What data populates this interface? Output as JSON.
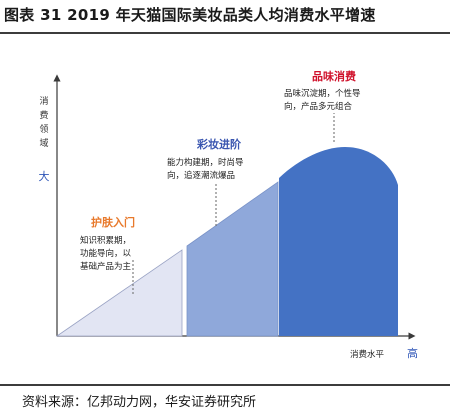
{
  "title": "图表 31 2019 年天猫国际美妆品类人均消费水平增速",
  "y_axis": {
    "label_chars": [
      "消",
      "费",
      "领",
      "域"
    ],
    "high_label": "大"
  },
  "x_axis": {
    "label": "消费水平",
    "high_label": "高"
  },
  "stages": [
    {
      "name": "护肤入门",
      "desc_lines": [
        "知识积累期，",
        "功能导向，以",
        "基础产品为主"
      ],
      "color": "#e2e5f3",
      "title_color": "#e8792b"
    },
    {
      "name": "彩妆进阶",
      "desc_lines": [
        "能力构建期，时尚导",
        "向，追逐潮流爆品"
      ],
      "color": "#8fa8da",
      "title_color": "#3a56b0"
    },
    {
      "name": "品味消费",
      "desc_lines": [
        "品味沉淀期，个性导",
        "向，产品多元组合"
      ],
      "color": "#4472c4",
      "title_color": "#d0112b"
    }
  ],
  "source": "资料来源：亿邦动力网，华安证券研究所"
}
